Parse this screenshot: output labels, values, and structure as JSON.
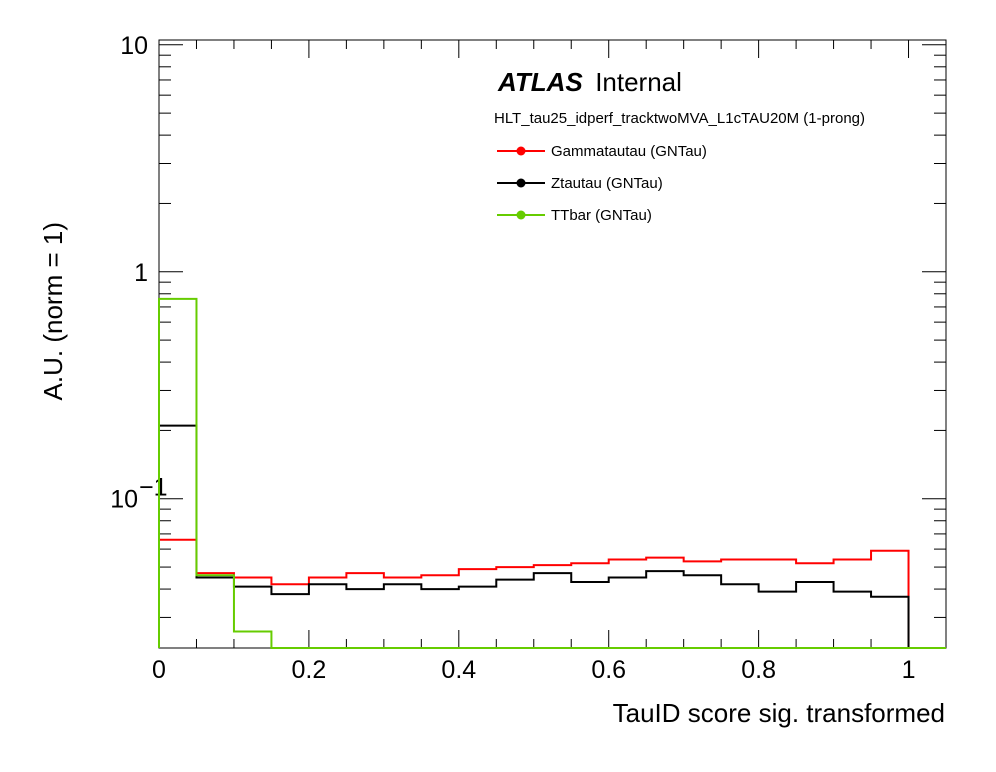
{
  "chart_data": {
    "type": "line",
    "drawstyle": "steps-histogram",
    "x_edges": [
      0,
      0.05,
      0.1,
      0.15,
      0.2,
      0.25,
      0.3,
      0.35,
      0.4,
      0.45,
      0.5,
      0.55,
      0.6,
      0.65,
      0.7,
      0.75,
      0.8,
      0.85,
      0.9,
      0.95,
      1.0
    ],
    "series": [
      {
        "name": "Gammatautau (GNTau)",
        "color": "#ff0000",
        "values": [
          0.066,
          0.047,
          0.045,
          0.042,
          0.045,
          0.047,
          0.045,
          0.046,
          0.049,
          0.05,
          0.051,
          0.052,
          0.054,
          0.055,
          0.053,
          0.054,
          0.054,
          0.052,
          0.054,
          0.059
        ]
      },
      {
        "name": "Ztautau (GNTau)",
        "color": "#000000",
        "values": [
          0.21,
          0.045,
          0.041,
          0.038,
          0.042,
          0.04,
          0.042,
          0.04,
          0.041,
          0.044,
          0.047,
          0.043,
          0.045,
          0.048,
          0.046,
          0.042,
          0.039,
          0.043,
          0.039,
          0.037
        ]
      },
      {
        "name": "TTbar (GNTau)",
        "color": "#66cc00",
        "values": [
          0.76,
          0.046,
          0.026,
          0.0,
          0.0,
          0.0,
          0.0,
          0.0,
          0.0,
          0.0,
          0.0,
          0.0,
          0.0,
          0.0,
          0.0,
          0.0,
          0.0,
          0.0,
          0.0,
          0.0
        ]
      }
    ],
    "xlabel": "TauID score sig. transformed",
    "ylabel": "A.U. (norm = 1)",
    "xlim": [
      0,
      1.05
    ],
    "ylim": [
      0.022,
      10.5
    ],
    "yscale": "log",
    "x_tick_labels": [
      {
        "v": 0,
        "t": "0"
      },
      {
        "v": 0.2,
        "t": "0.2"
      },
      {
        "v": 0.4,
        "t": "0.4"
      },
      {
        "v": 0.6,
        "t": "0.6"
      },
      {
        "v": 0.8,
        "t": "0.8"
      },
      {
        "v": 1,
        "t": "1"
      }
    ],
    "y_tick_labels": [
      {
        "v": 10,
        "t": "10"
      },
      {
        "v": 1,
        "t": "1"
      }
    ],
    "y_tick_label_sci": {
      "v": 0.1,
      "base": "10",
      "exp": "−1"
    },
    "atlas_label": "ATLAS",
    "atlas_status": "Internal",
    "trigger": "HLT_tau25_idperf_tracktwoMVA_L1cTAU20M (1-prong)",
    "legend_position": "top-right",
    "grid": false
  }
}
